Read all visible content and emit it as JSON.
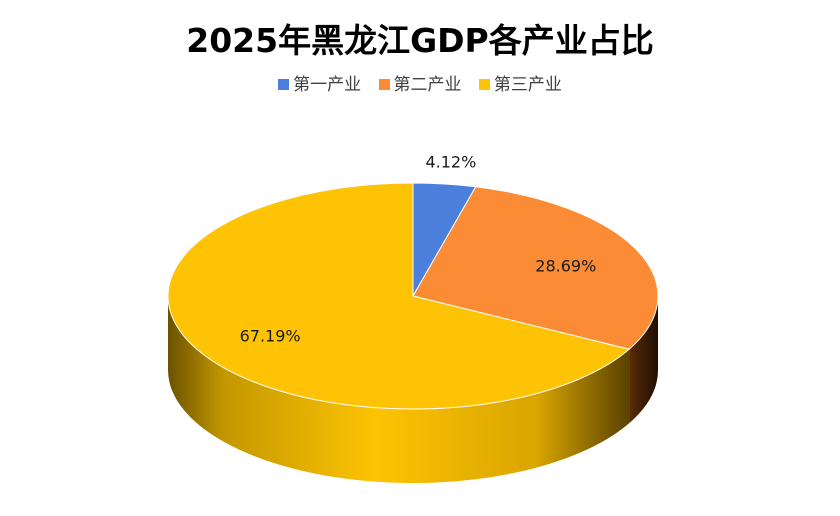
{
  "chart_data": {
    "type": "pie",
    "title": "2025年黑龙江GDP各产业占比",
    "legend_position": "top",
    "categories": [
      "第一产业",
      "第二产业",
      "第三产业"
    ],
    "values": [
      4.12,
      28.69,
      67.19
    ],
    "labels": [
      "4.12%",
      "28.69%",
      "67.19%"
    ],
    "colors": [
      "#4a7fdc",
      "#fb8c35",
      "#fdc304"
    ],
    "style": "3d"
  }
}
